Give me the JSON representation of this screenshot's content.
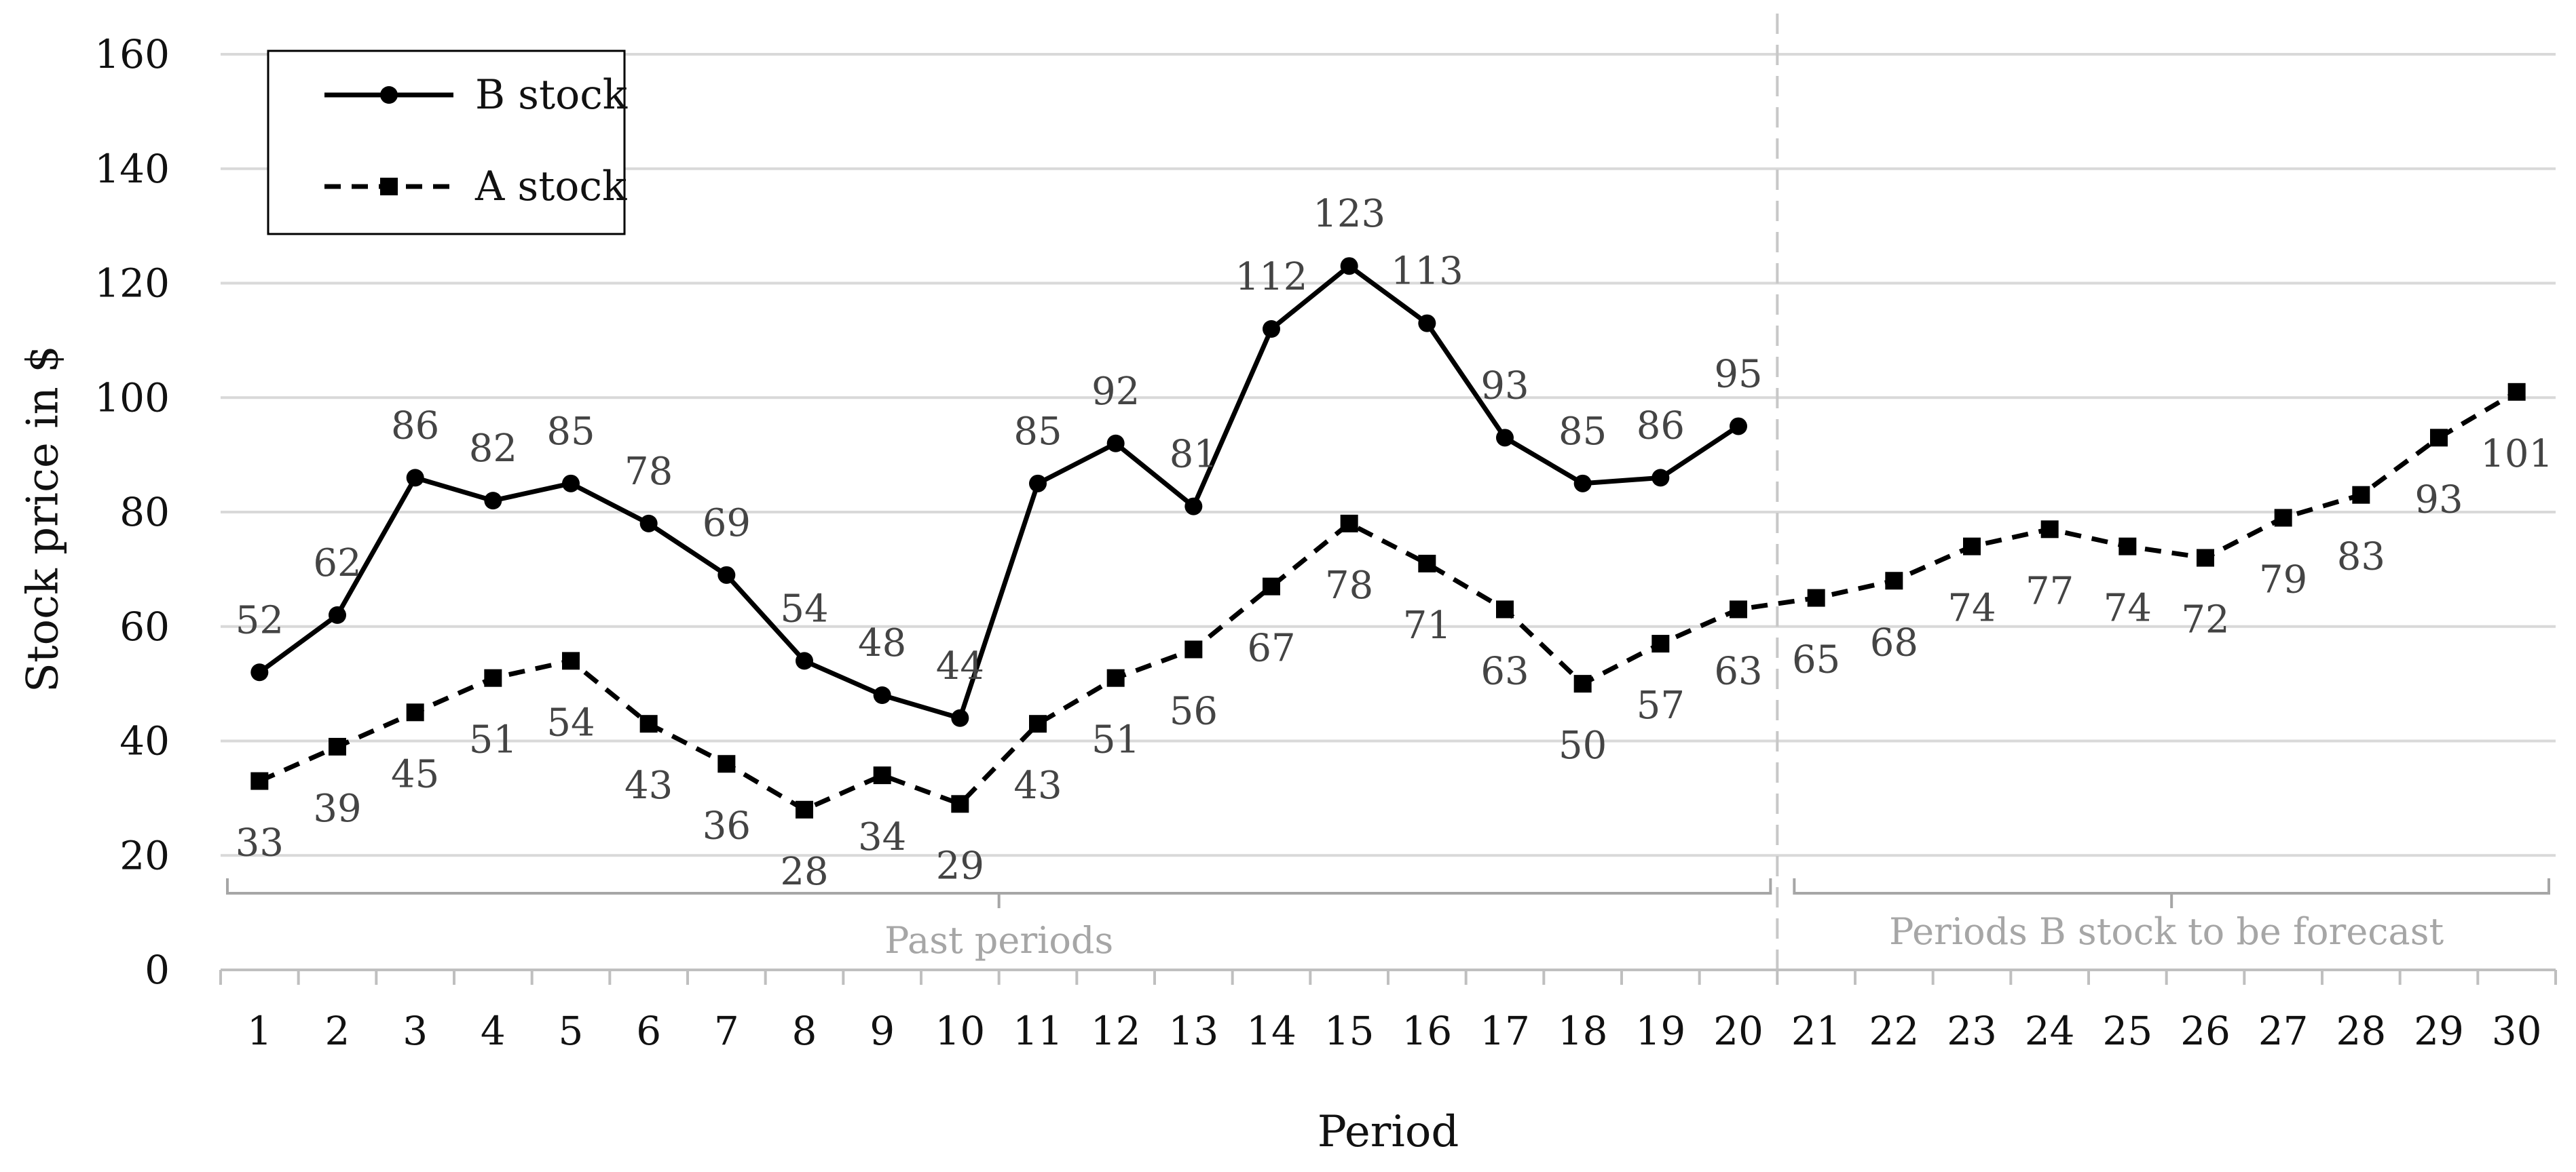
{
  "chart_data": {
    "type": "line",
    "xlabel": "Period",
    "ylabel": "Stock price in $",
    "ylim": [
      0,
      160
    ],
    "yticks": [
      0,
      20,
      40,
      60,
      80,
      100,
      120,
      140,
      160
    ],
    "x": [
      1,
      2,
      3,
      4,
      5,
      6,
      7,
      8,
      9,
      10,
      11,
      12,
      13,
      14,
      15,
      16,
      17,
      18,
      19,
      20,
      21,
      22,
      23,
      24,
      25,
      26,
      27,
      28,
      29,
      30
    ],
    "grid": "horizontal",
    "legend_position": "top-left",
    "series": [
      {
        "name": "B stock",
        "style": "solid",
        "marker": "circle",
        "color": "#000000",
        "x": [
          1,
          2,
          3,
          4,
          5,
          6,
          7,
          8,
          9,
          10,
          11,
          12,
          13,
          14,
          15,
          16,
          17,
          18,
          19,
          20
        ],
        "values": [
          52,
          62,
          86,
          82,
          85,
          78,
          69,
          54,
          48,
          44,
          85,
          92,
          81,
          112,
          123,
          113,
          93,
          85,
          86,
          95
        ]
      },
      {
        "name": "A stock",
        "style": "dashed",
        "marker": "square",
        "color": "#000000",
        "x": [
          1,
          2,
          3,
          4,
          5,
          6,
          7,
          8,
          9,
          10,
          11,
          12,
          13,
          14,
          15,
          16,
          17,
          18,
          19,
          20,
          21,
          22,
          23,
          24,
          25,
          26,
          27,
          28,
          29,
          30
        ],
        "values": [
          33,
          39,
          45,
          51,
          54,
          43,
          36,
          28,
          34,
          29,
          43,
          51,
          56,
          67,
          78,
          71,
          63,
          50,
          57,
          63,
          65,
          68,
          74,
          77,
          74,
          72,
          79,
          83,
          93,
          101
        ]
      }
    ],
    "annotations": {
      "divider_after_period": 20,
      "divider_color": "#c8c8c8",
      "past": {
        "label": "Past periods",
        "from": 0.5,
        "to": 20.5
      },
      "forecast": {
        "label": "Periods B stock to be forecast",
        "from": 20.5,
        "to": 30.5
      }
    }
  }
}
